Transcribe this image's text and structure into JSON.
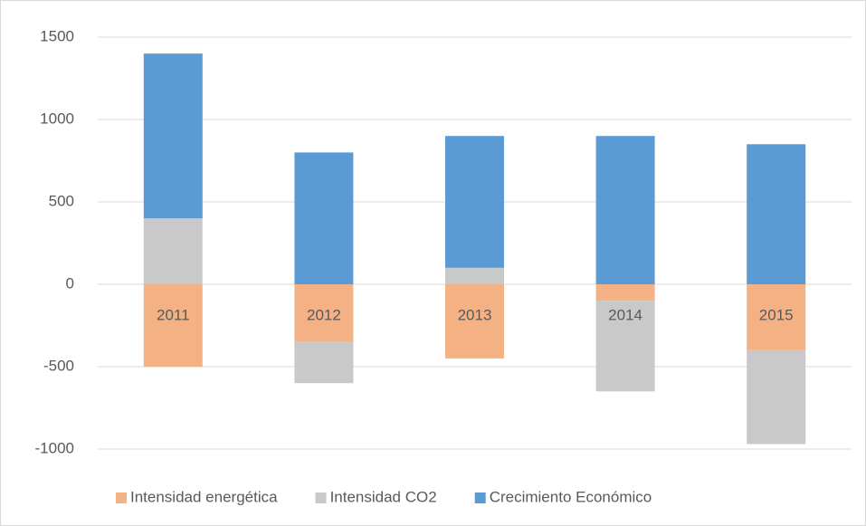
{
  "chart_data": {
    "type": "stacked-bar",
    "categories": [
      "2011",
      "2012",
      "2013",
      "2014",
      "2015"
    ],
    "series": [
      {
        "name": "Intensidad energética",
        "color": "#f4b183",
        "values": [
          -500,
          -350,
          -450,
          -100,
          -400
        ]
      },
      {
        "name": "Intensidad CO2",
        "color": "#c9c9c9",
        "values": [
          400,
          -250,
          100,
          -550,
          -570
        ]
      },
      {
        "name": "Crecimiento Económico",
        "color": "#5b9bd5",
        "values": [
          1000,
          800,
          800,
          900,
          850
        ]
      }
    ],
    "ylim": [
      -1000,
      1500
    ],
    "yticks": [
      -1000,
      -500,
      0,
      500,
      1000,
      1500
    ],
    "grid": true,
    "legend": "bottom"
  }
}
